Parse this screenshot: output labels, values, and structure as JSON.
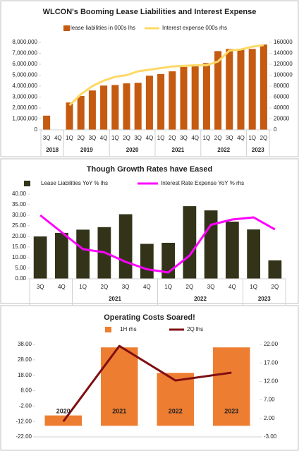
{
  "chart_data": [
    {
      "type": "combo",
      "title": "WLCON's Booming Lease Liabilities and Interest Expense",
      "grid": false,
      "groups": [
        {
          "label": "2018",
          "categories": [
            "3Q",
            "4Q"
          ]
        },
        {
          "label": "2019",
          "categories": [
            "1Q",
            "2Q",
            "3Q",
            "4Q"
          ]
        },
        {
          "label": "2020",
          "categories": [
            "1Q",
            "2Q",
            "3Q",
            "4Q"
          ]
        },
        {
          "label": "2021",
          "categories": [
            "1Q",
            "2Q",
            "3Q",
            "4Q"
          ]
        },
        {
          "label": "2022",
          "categories": [
            "1Q",
            "2Q",
            "3Q",
            "4Q"
          ]
        },
        {
          "label": "2023",
          "categories": [
            "1Q",
            "2Q"
          ]
        }
      ],
      "ylim": [
        0,
        8000000
      ],
      "yticks": [
        0,
        {
          "value": 1000000,
          "label": "1,000,000"
        },
        {
          "value": 2000000,
          "label": "2,000,000"
        },
        {
          "value": 3000000,
          "label": "3,000,000"
        },
        {
          "value": 4000000,
          "label": "4,000,000"
        },
        {
          "value": 5000000,
          "label": "5,000,000"
        },
        {
          "value": 6000000,
          "label": "6,000,000"
        },
        {
          "value": 7000000,
          "label": "7,000,000"
        },
        {
          "value": 8000000,
          "label": "8,000,000"
        }
      ],
      "y2lim": [
        0,
        160000
      ],
      "y2ticks": [
        0,
        20000,
        40000,
        60000,
        80000,
        100000,
        120000,
        140000,
        160000
      ],
      "series": [
        {
          "name": "lease liabilities in 000s lhs",
          "type": "bar",
          "color": "#c55a11",
          "values": [
            1300000,
            null,
            2500000,
            3100000,
            3600000,
            4050000,
            4100000,
            4250000,
            4300000,
            4950000,
            5100000,
            5350000,
            5750000,
            5800000,
            6100000,
            7200000,
            7400000,
            7400000,
            7400000,
            7800000
          ]
        },
        {
          "name": "Interest expense 000s rhs",
          "type": "line",
          "color": "#ffd966",
          "axis": "y2",
          "values": [
            null,
            null,
            45000,
            65000,
            80000,
            90000,
            97000,
            100000,
            107000,
            110000,
            113000,
            116000,
            117000,
            118000,
            118000,
            125000,
            145000,
            147000,
            152000,
            155000
          ]
        }
      ]
    },
    {
      "type": "combo",
      "title": "Though Growth Rates have Eased",
      "grid": false,
      "groups": [
        {
          "label": null,
          "categories": [
            "3Q",
            "4Q"
          ]
        },
        {
          "label": "2021",
          "categories": [
            "1Q",
            "2Q",
            "3Q",
            "4Q"
          ]
        },
        {
          "label": "2022",
          "categories": [
            "1Q",
            "2Q",
            "3Q",
            "4Q"
          ]
        },
        {
          "label": "2023",
          "categories": [
            "1Q",
            "2Q"
          ]
        }
      ],
      "ylim": [
        0,
        40
      ],
      "yticks": [
        {
          "value": 0,
          "label": "0.00"
        },
        {
          "value": 5,
          "label": "5.00"
        },
        {
          "value": 10,
          "label": "10.00"
        },
        {
          "value": 15,
          "label": "15.00"
        },
        {
          "value": 20,
          "label": "20.00"
        },
        {
          "value": 25,
          "label": "25.00"
        },
        {
          "value": 30,
          "label": "30.00"
        },
        {
          "value": 35,
          "label": "35.00"
        },
        {
          "value": 40,
          "label": "40.00"
        }
      ],
      "series": [
        {
          "name": "Lease Liabilities YoY % lhs",
          "type": "bar",
          "color": "#33331a",
          "values": [
            20.0,
            21.7,
            23.2,
            24.4,
            30.5,
            16.5,
            17.0,
            34.3,
            32.3,
            27.0,
            23.3,
            8.7
          ]
        },
        {
          "name": "Interest Rate Expense YoY % rhs",
          "type": "line",
          "color": "#ff00ff",
          "values": [
            30.0,
            22.0,
            14.0,
            12.5,
            8.0,
            4.5,
            3.0,
            11.0,
            25.5,
            28.0,
            29.0,
            23.3
          ]
        }
      ]
    },
    {
      "type": "combo",
      "title": "Operating Costs Soared!",
      "grid": false,
      "categories": [
        "2020",
        "2021",
        "2022",
        "2023"
      ],
      "ylim": [
        -22,
        38
      ],
      "yticks": [
        {
          "value": -22,
          "label": "-22.00"
        },
        {
          "value": -12,
          "label": "-12.00"
        },
        {
          "value": -2,
          "label": "-2.00"
        },
        {
          "value": 8,
          "label": "8.00"
        },
        {
          "value": 18,
          "label": "18.00"
        },
        {
          "value": 28,
          "label": "28.00"
        },
        {
          "value": 38,
          "label": "38.00"
        }
      ],
      "y2lim": [
        -3,
        22
      ],
      "y2ticks": [
        {
          "value": -3,
          "label": "-3.00"
        },
        {
          "value": 2,
          "label": "2.00"
        },
        {
          "value": 7,
          "label": "7.00"
        },
        {
          "value": 12,
          "label": "12.00"
        },
        {
          "value": 17,
          "label": "17.00"
        },
        {
          "value": 22,
          "label": "22.00"
        }
      ],
      "series": [
        {
          "name": "1H rhs",
          "type": "bar",
          "color": "#ed7d31",
          "axis": "y2",
          "values": [
            2.8,
            21.2,
            14.3,
            21.2
          ]
        },
        {
          "name": "2Q lhs",
          "type": "line",
          "color": "#7f0f12",
          "values": [
            -12,
            37,
            14.6,
            19.7
          ]
        }
      ]
    }
  ]
}
